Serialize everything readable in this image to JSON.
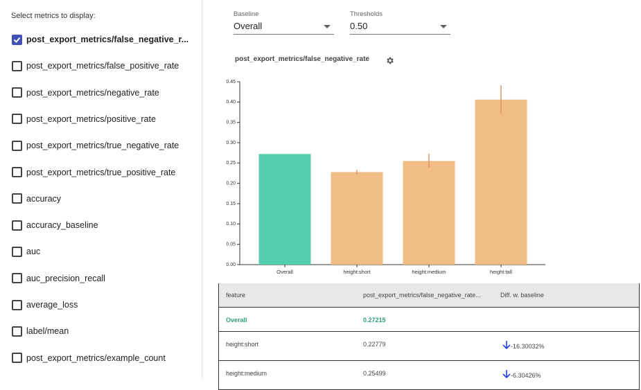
{
  "sidebar": {
    "title": "Select metrics to display:",
    "items": [
      {
        "label": "post_export_metrics/false_negative_r...",
        "checked": true
      },
      {
        "label": "post_export_metrics/false_positive_rate",
        "checked": false
      },
      {
        "label": "post_export_metrics/negative_rate",
        "checked": false
      },
      {
        "label": "post_export_metrics/positive_rate",
        "checked": false
      },
      {
        "label": "post_export_metrics/true_negative_rate",
        "checked": false
      },
      {
        "label": "post_export_metrics/true_positive_rate",
        "checked": false
      },
      {
        "label": "accuracy",
        "checked": false
      },
      {
        "label": "accuracy_baseline",
        "checked": false
      },
      {
        "label": "auc",
        "checked": false
      },
      {
        "label": "auc_precision_recall",
        "checked": false
      },
      {
        "label": "average_loss",
        "checked": false
      },
      {
        "label": "label/mean",
        "checked": false
      },
      {
        "label": "post_export_metrics/example_count",
        "checked": false
      }
    ]
  },
  "controls": [
    {
      "label": "Baseline",
      "value": "Overall"
    },
    {
      "label": "Thresholds",
      "value": "0.50"
    }
  ],
  "chart_data": {
    "type": "bar",
    "title": "post_export_metrics/false_negative_rate",
    "categories": [
      "Overall",
      "height:short",
      "height:medium",
      "height:tall"
    ],
    "values": [
      0.27215,
      0.22779,
      0.25499,
      0.406
    ],
    "error_low": [
      null,
      0.222,
      0.239,
      0.372
    ],
    "error_high": [
      null,
      0.233,
      0.273,
      0.441
    ],
    "colors": [
      "#55cfb0",
      "#f0be84",
      "#f0be84",
      "#f0be84"
    ],
    "error_color": "#e0926b",
    "ylim": [
      0,
      0.45
    ],
    "yticks": [
      {
        "value": 0,
        "label": "0.00"
      },
      {
        "value": 0.05,
        "label": "0.05"
      },
      {
        "value": 0.1,
        "label": "0.10"
      },
      {
        "value": 0.15,
        "label": "0.15"
      },
      {
        "value": 0.2,
        "label": "0.20"
      },
      {
        "value": 0.25,
        "label": "0.25"
      },
      {
        "value": 0.3,
        "label": "0.30"
      },
      {
        "value": 0.35,
        "label": "0.35"
      },
      {
        "value": 0.4,
        "label": "0.40"
      },
      {
        "value": 0.45,
        "label": "0.45"
      }
    ]
  },
  "table": {
    "header": [
      "feature",
      "post_export_metrics/false_negative_rate...",
      "Diff. w. baseline"
    ],
    "rows": [
      [
        "Overall",
        "0.27215",
        ""
      ],
      [
        "height:short",
        "0.22779",
        "-16.30032%"
      ],
      [
        "height:medium",
        "0.25499",
        "-6.30426%"
      ]
    ]
  }
}
